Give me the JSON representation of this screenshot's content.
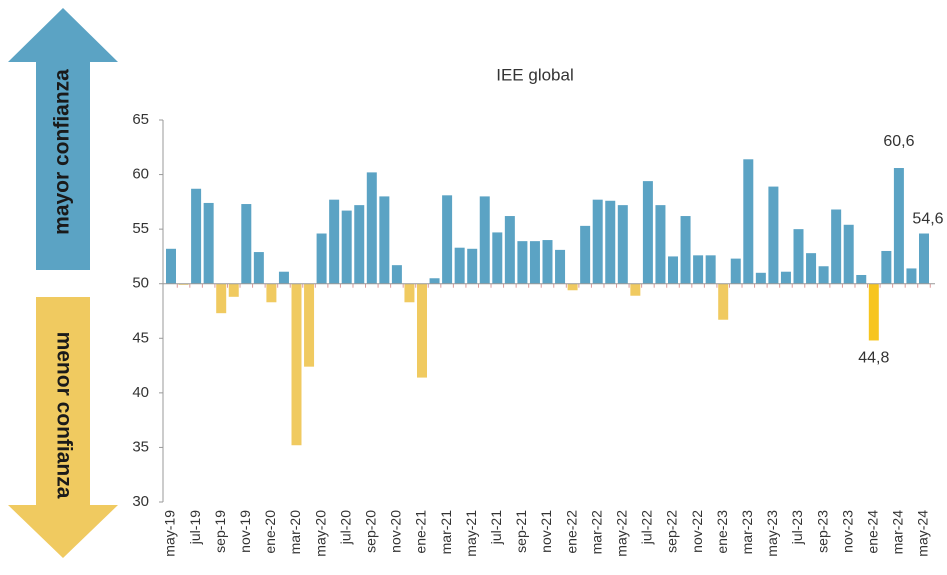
{
  "chart_data": {
    "type": "bar",
    "title": "IEE global",
    "side_labels": {
      "up": "mayor confianza",
      "down": "menor confianza"
    },
    "categories": [
      "may-19",
      null,
      "jul-19",
      null,
      "sep-19",
      null,
      "nov-19",
      null,
      "ene-20",
      null,
      "mar-20",
      null,
      "may-20",
      null,
      "jul-20",
      null,
      "sep-20",
      null,
      "nov-20",
      null,
      "ene-21",
      null,
      "mar-21",
      null,
      "may-21",
      null,
      "jul-21",
      null,
      "sep-21",
      null,
      "nov-21",
      null,
      "ene-22",
      null,
      "mar-22",
      null,
      "may-22",
      null,
      "jul-22",
      null,
      "sep-22",
      null,
      "nov-22",
      null,
      "ene-23",
      null,
      "mar-23",
      null,
      "may-23",
      null,
      "jul-23",
      null,
      "sep-23",
      null,
      "nov-23",
      null,
      "ene-24",
      null,
      "mar-24",
      null,
      "may-24"
    ],
    "values": [
      53.2,
      49.9,
      58.7,
      57.4,
      47.3,
      48.8,
      57.3,
      52.9,
      48.3,
      51.1,
      35.2,
      42.4,
      54.6,
      57.7,
      56.7,
      57.2,
      60.2,
      58.0,
      51.7,
      48.3,
      41.4,
      50.5,
      58.1,
      53.3,
      53.2,
      58.0,
      54.7,
      56.2,
      53.9,
      53.9,
      54.0,
      53.1,
      49.4,
      55.3,
      57.7,
      57.6,
      57.2,
      48.9,
      59.4,
      57.2,
      52.5,
      56.2,
      52.6,
      52.6,
      46.7,
      52.3,
      61.4,
      51.0,
      58.9,
      51.1,
      55.0,
      52.8,
      51.6,
      56.8,
      55.4,
      50.8,
      44.8,
      53.0,
      60.6,
      51.4,
      54.6
    ],
    "value_labels": [
      null,
      null,
      null,
      null,
      null,
      null,
      null,
      null,
      null,
      null,
      null,
      null,
      null,
      null,
      null,
      null,
      null,
      null,
      null,
      null,
      null,
      null,
      null,
      null,
      null,
      null,
      null,
      null,
      null,
      null,
      null,
      null,
      null,
      null,
      null,
      null,
      null,
      null,
      null,
      null,
      null,
      null,
      null,
      null,
      null,
      null,
      null,
      null,
      null,
      null,
      null,
      null,
      null,
      null,
      null,
      null,
      "44,8",
      null,
      "60,6",
      null,
      "54,6"
    ],
    "baseline": 50,
    "color_above": "#5ba3c4",
    "color_below": "#f0ca60",
    "highlight_color": "#f7c51e",
    "highlight": [
      56
    ],
    "ylim": [
      30,
      65
    ],
    "yticks": [
      30,
      35,
      40,
      45,
      50,
      55,
      60,
      65
    ]
  }
}
